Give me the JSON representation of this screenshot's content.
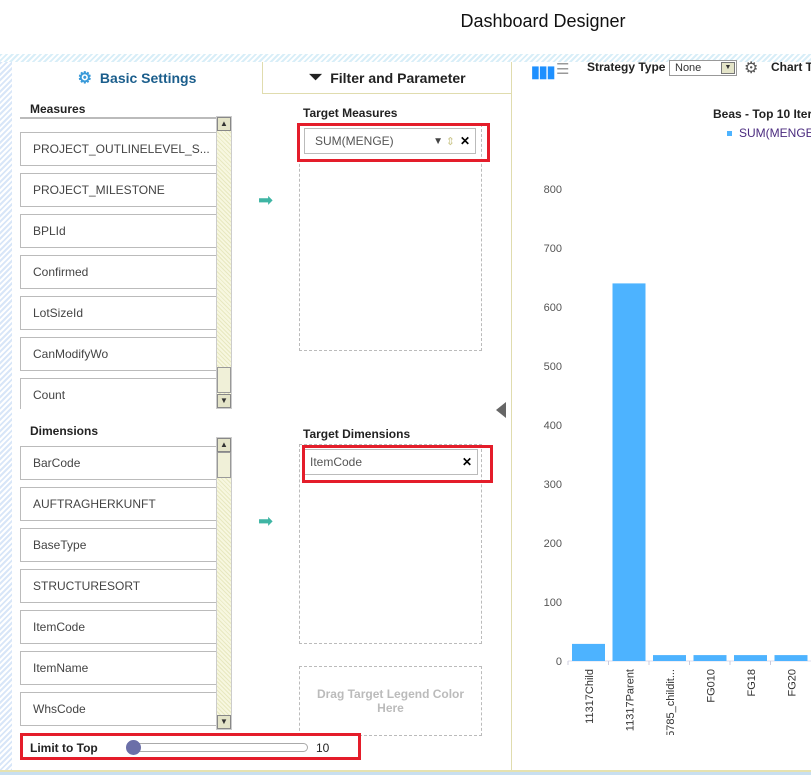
{
  "header": {
    "title": "Dashboard Designer"
  },
  "tabs": [
    {
      "label": "Basic Settings",
      "icon": "gear-icon"
    },
    {
      "label": "Filter and Parameter",
      "icon": "filter-icon"
    }
  ],
  "measures": {
    "label": "Measures",
    "items": [
      "PROJECT_OUTLINELEVEL_S...",
      "PROJECT_MILESTONE",
      "BPLId",
      "Confirmed",
      "LotSizeId",
      "CanModifyWo",
      "Count"
    ]
  },
  "dimensions": {
    "label": "Dimensions",
    "items": [
      "BarCode",
      "AUFTRAGHERKUNFT",
      "BaseType",
      "STRUCTURESORT",
      "ItemCode",
      "ItemName",
      "WhsCode"
    ]
  },
  "target_measures": {
    "label": "Target Measures",
    "items": [
      "SUM(MENGE)"
    ]
  },
  "target_dimensions": {
    "label": "Target Dimensions",
    "items": [
      "ItemCode"
    ]
  },
  "legend_drop": {
    "text": "Drag Target Legend Color Here"
  },
  "limit": {
    "label": "Limit to Top",
    "value": "10",
    "slider_fraction": 0.0
  },
  "chart_toolbar": {
    "strategy_label": "Strategy Type",
    "strategy_value": "None",
    "chart_type_label": "Chart T"
  },
  "chart_data": {
    "type": "bar",
    "title": "Beas - Top 10 Iter",
    "legend": [
      "SUM(MENGE"
    ],
    "legend_position": "top-right",
    "categories": [
      "11317Child",
      "11317Parent",
      "5785_childit...",
      "FG010",
      "FG18",
      "FG20"
    ],
    "series": [
      {
        "name": "SUM(MENGE",
        "values": [
          29,
          640,
          10,
          10,
          10,
          10
        ],
        "color": "#4db3ff"
      }
    ],
    "ylim": [
      0,
      800
    ],
    "yticks": [
      0,
      100,
      200,
      300,
      400,
      500,
      600,
      700,
      800
    ],
    "grid": false
  }
}
